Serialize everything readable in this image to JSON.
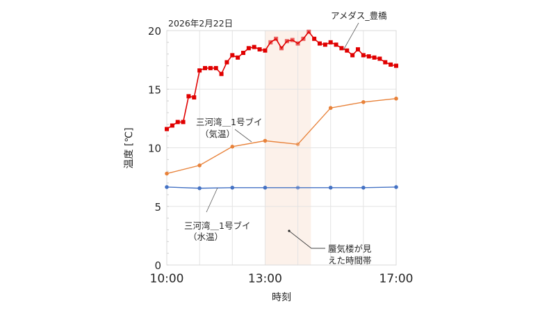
{
  "chart_data": {
    "type": "line",
    "title": "2026年2月22日",
    "xlabel": "時刻",
    "ylabel": "温度 [℃]",
    "xlim_hours": [
      10,
      17
    ],
    "ylim": [
      0,
      20
    ],
    "y_ticks": [
      0,
      5,
      10,
      15,
      20
    ],
    "y_minor_step": 1,
    "x_tick_labels": [
      {
        "hour": 10,
        "label": "10:00"
      },
      {
        "hour": 13,
        "label": "13:00"
      },
      {
        "hour": 17,
        "label": "17:00"
      }
    ],
    "grid": true,
    "shaded_region": {
      "label": "蜃気楼が見\nえた時間帯",
      "label_lines": [
        "蜃気楼が見",
        "えた時間帯"
      ],
      "from_hour": 13.0,
      "to_hour": 14.4,
      "color": "#fbeee6"
    },
    "series": [
      {
        "name": "アメダス_豊橋",
        "color": "#e00000",
        "marker": "square",
        "interval_minutes": 10,
        "x_hours": [
          10.0,
          10.1667,
          10.3333,
          10.5,
          10.6667,
          10.8333,
          11.0,
          11.1667,
          11.3333,
          11.5,
          11.6667,
          11.8333,
          12.0,
          12.1667,
          12.3333,
          12.5,
          12.6667,
          12.8333,
          13.0,
          13.1667,
          13.3333,
          13.5,
          13.6667,
          13.8333,
          14.0,
          14.1667,
          14.3333,
          14.5,
          14.6667,
          14.8333,
          15.0,
          15.1667,
          15.3333,
          15.5,
          15.6667,
          15.8333,
          16.0,
          16.1667,
          16.3333,
          16.5,
          16.6667,
          16.8333,
          17.0
        ],
        "values": [
          11.6,
          11.9,
          12.2,
          12.2,
          14.4,
          14.3,
          16.6,
          16.8,
          16.8,
          16.8,
          16.3,
          17.3,
          17.9,
          17.7,
          18.1,
          18.5,
          18.6,
          18.4,
          18.3,
          19.0,
          19.3,
          18.5,
          19.1,
          19.2,
          18.9,
          19.3,
          19.9,
          19.3,
          18.9,
          18.8,
          19.0,
          18.8,
          18.5,
          18.3,
          17.9,
          18.4,
          17.9,
          17.8,
          17.7,
          17.6,
          17.3,
          17.1,
          17.0
        ]
      },
      {
        "name": "三河湾＿1号ブイ（気温）",
        "label_lines": [
          "三河湾＿1号ブイ",
          "（気温）"
        ],
        "color": "#e8823a",
        "marker": "circle",
        "x_hours": [
          10,
          11,
          12,
          13,
          14,
          15,
          16,
          17
        ],
        "values": [
          7.8,
          8.5,
          10.1,
          10.6,
          10.3,
          13.4,
          13.9,
          14.2
        ]
      },
      {
        "name": "三河湾＿1号ブイ（水温）",
        "label_lines": [
          "三河湾＿1号ブイ",
          "（水温）"
        ],
        "color": "#4472c4",
        "marker": "circle",
        "x_hours": [
          10,
          11,
          12,
          13,
          14,
          15,
          16,
          17
        ],
        "values": [
          6.65,
          6.55,
          6.6,
          6.6,
          6.6,
          6.6,
          6.6,
          6.65
        ]
      }
    ]
  },
  "labels": {
    "date": "2026年2月22日",
    "x_axis_title": "時刻",
    "y_axis_title": "温度 [℃]",
    "amedas": "アメダス_豊橋",
    "air_temp_line1": "三河湾＿1号ブイ",
    "air_temp_line2": "（気温）",
    "water_temp_line1": "三河湾＿1号ブイ",
    "water_temp_line2": "（水温）",
    "mirage_line1": "蜃気楼が見",
    "mirage_line2": "えた時間帯"
  }
}
